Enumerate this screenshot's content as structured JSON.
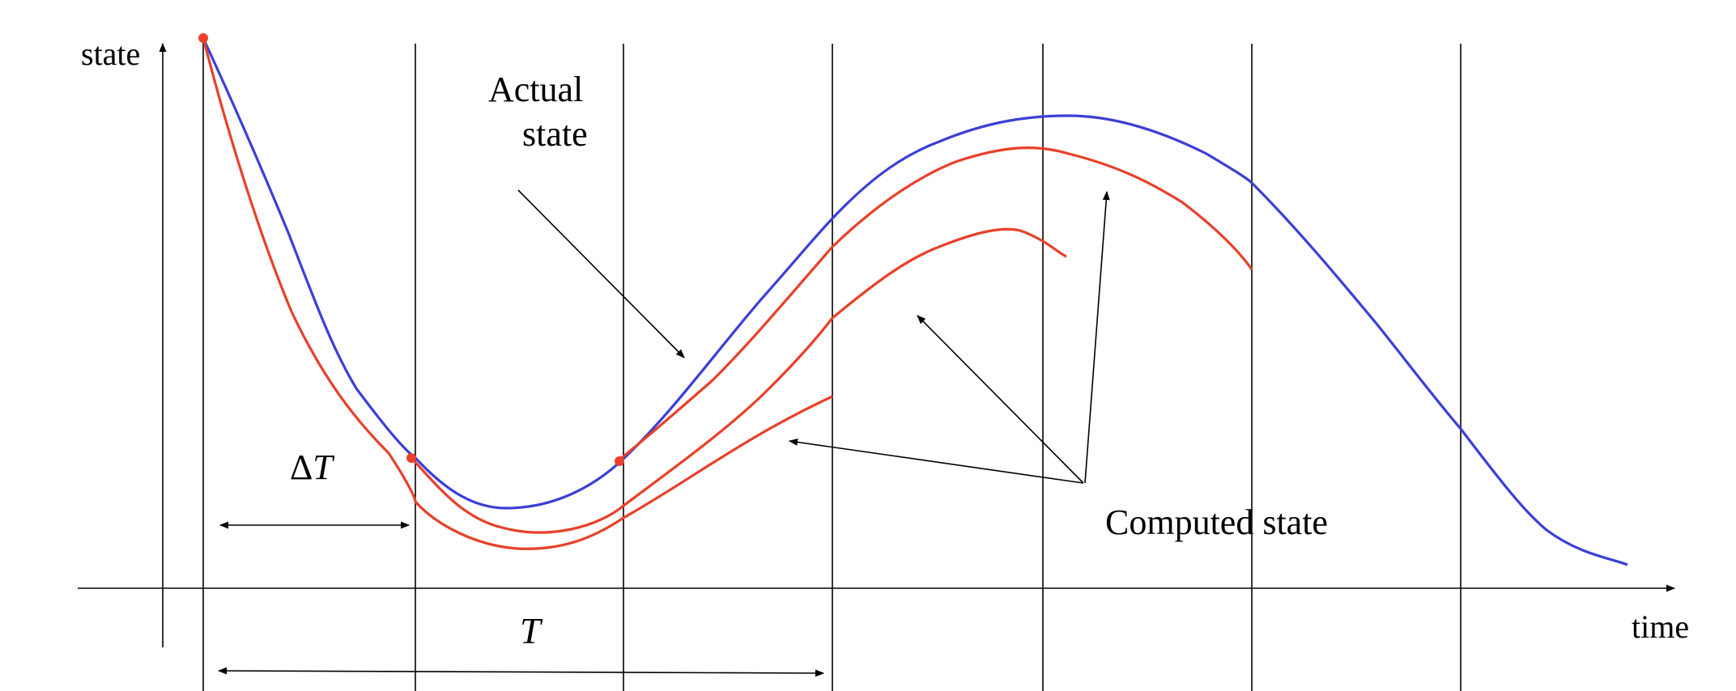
{
  "axes": {
    "y_label": "state",
    "x_label": "time"
  },
  "annotations": {
    "actual_line1": "Actual",
    "actual_line2": "state",
    "computed": "Computed state",
    "delta_symbol": "Δ",
    "delta_var": "T",
    "horizon": "T"
  },
  "colors": {
    "actual": "#3b3fd6",
    "computed": "#e8402a",
    "ink": "#000000"
  }
}
